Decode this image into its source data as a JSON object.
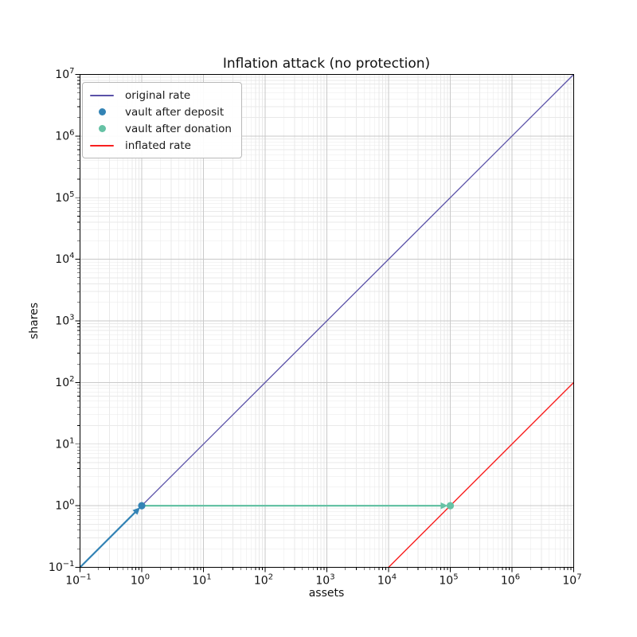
{
  "figure": {
    "background": "#ffffff",
    "text_color": "#111111"
  },
  "chart_data": {
    "type": "line",
    "title": "Inflation attack (no protection)",
    "xlabel": "assets",
    "ylabel": "shares",
    "xscale": "log",
    "yscale": "log",
    "xlim": [
      0.1,
      10000000
    ],
    "ylim": [
      0.1,
      10000000
    ],
    "x_tick_exponents": [
      -1,
      0,
      1,
      2,
      3,
      4,
      5,
      6,
      7
    ],
    "y_tick_exponents": [
      -1,
      0,
      1,
      2,
      3,
      4,
      5,
      6,
      7
    ],
    "tick_label_base": "10",
    "grid": {
      "major": true,
      "minor": true,
      "major_color": "#c9c9c9",
      "minor_color": "#e9e9e9"
    },
    "legend": {
      "position": "upper left",
      "border_color": "#b9b9b9",
      "background": "#ffffff"
    },
    "series": [
      {
        "name": "original rate",
        "kind": "line",
        "color": "#5a51a8",
        "line_width": 1.3,
        "points": [
          [
            0.1,
            0.1
          ],
          [
            10000000,
            10000000
          ]
        ]
      },
      {
        "name": "vault after deposit",
        "kind": "scatter",
        "marker": "circle",
        "color": "#3383b5",
        "marker_size": 9.2,
        "points": [
          [
            1,
            1
          ]
        ],
        "arrow": {
          "from": [
            0.1,
            0.1
          ],
          "to": [
            1,
            1
          ],
          "width": 2.2
        }
      },
      {
        "name": "vault after donation",
        "kind": "scatter",
        "marker": "circle",
        "color": "#66c2a5",
        "marker_size": 9.2,
        "points": [
          [
            100000,
            1
          ]
        ],
        "arrow": {
          "from": [
            1,
            1
          ],
          "to": [
            100000,
            1
          ],
          "width": 2.2
        }
      },
      {
        "name": "inflated rate",
        "kind": "line",
        "color": "#f81f1f",
        "line_width": 1.4,
        "points": [
          [
            10000,
            0.1
          ],
          [
            10000000,
            100
          ]
        ]
      }
    ]
  }
}
